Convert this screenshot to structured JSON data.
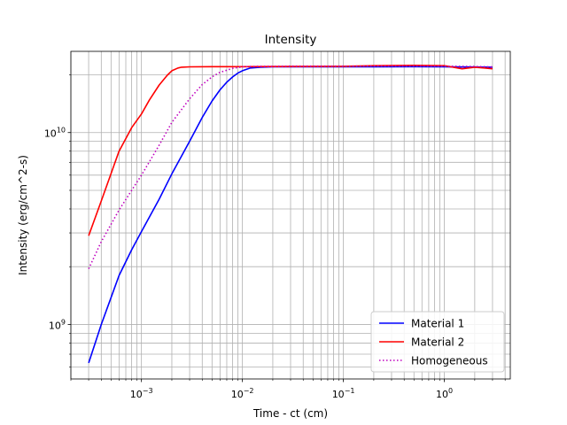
{
  "chart_data": {
    "type": "line",
    "title": "Intensity",
    "xlabel": "Time - ct (cm)",
    "ylabel": "Intensity (erg/cm^2-s)",
    "xscale": "log",
    "yscale": "log",
    "xlim": [
      0.0002,
      4.5
    ],
    "ylim": [
      520000000,
      26500000000
    ],
    "grid": true,
    "legend_position": "lower-right",
    "x_major_ticks": [
      {
        "value": 0.001,
        "base": "10",
        "exp": "−3"
      },
      {
        "value": 0.01,
        "base": "10",
        "exp": "−2"
      },
      {
        "value": 0.1,
        "base": "10",
        "exp": "−1"
      },
      {
        "value": 1,
        "base": "10",
        "exp": "0"
      }
    ],
    "y_major_ticks": [
      {
        "value": 1000000000,
        "base": "10",
        "exp": "9"
      },
      {
        "value": 10000000000,
        "base": "10",
        "exp": "10"
      }
    ],
    "series": [
      {
        "name": "Material 1",
        "color": "#0000ff",
        "dash": "solid",
        "x": [
          0.0003,
          0.0004,
          0.0006,
          0.0008,
          0.001,
          0.0015,
          0.002,
          0.003,
          0.004,
          0.005,
          0.006,
          0.007,
          0.008,
          0.009,
          0.01,
          0.012,
          0.015,
          0.02,
          0.03,
          0.05,
          0.1,
          0.2,
          0.5,
          1.0,
          2.0,
          3.0
        ],
        "y": [
          630000000,
          1000000000,
          1800000000,
          2450000000,
          3050000000,
          4500000000,
          6100000000,
          9000000000,
          12000000000,
          14600000000,
          16700000000,
          18300000000,
          19500000000,
          20400000000,
          21000000000,
          21700000000,
          21900000000,
          22000000000,
          22000000000,
          22000000000,
          22000000000,
          22000000000,
          22050000000,
          22000000000,
          21950000000,
          21900000000
        ]
      },
      {
        "name": "Material 2",
        "color": "#ff0000",
        "dash": "solid",
        "x": [
          0.0003,
          0.0004,
          0.0006,
          0.0008,
          0.001,
          0.0012,
          0.0015,
          0.0018,
          0.002,
          0.0023,
          0.0025,
          0.003,
          0.005,
          0.01,
          0.03,
          0.1,
          0.2,
          0.5,
          1.0,
          1.5,
          2.0,
          2.5,
          3.0
        ],
        "y": [
          2900000000,
          4400000000,
          8000000000,
          10600000000,
          12500000000,
          14800000000,
          17700000000,
          19900000000,
          21000000000,
          21700000000,
          21900000000,
          22000000000,
          22050000000,
          22050000000,
          22100000000,
          22150000000,
          22300000000,
          22400000000,
          22300000000,
          21500000000,
          21900000000,
          21700000000,
          21500000000
        ]
      },
      {
        "name": "Homogeneous",
        "color": "#bf00bf",
        "dash": "dotted",
        "x": [
          0.0003,
          0.0004,
          0.0006,
          0.0008,
          0.001,
          0.0015,
          0.002,
          0.003,
          0.004,
          0.005,
          0.006,
          0.008,
          0.01,
          0.012,
          0.015,
          0.02,
          0.03,
          0.05,
          0.1,
          0.3,
          1.0,
          2.0,
          3.0
        ],
        "y": [
          1950000000,
          2700000000,
          3950000000,
          5000000000,
          6000000000,
          8600000000,
          11300000000,
          15000000000,
          17800000000,
          19500000000,
          20600000000,
          21600000000,
          22000000000,
          22100000000,
          22150000000,
          22150000000,
          22200000000,
          22200000000,
          22200000000,
          22250000000,
          22200000000,
          22100000000,
          22000000000
        ]
      }
    ]
  }
}
